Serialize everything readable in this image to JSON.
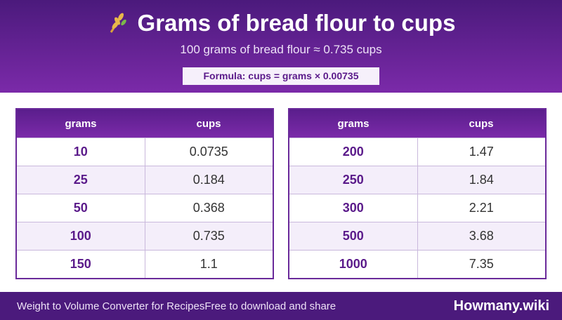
{
  "header": {
    "title": "Grams of bread flour to cups",
    "subtitle": "100 grams of bread flour ≈ 0.735 cups",
    "formula": "Formula: cups = grams × 0.00735"
  },
  "tables": [
    {
      "columns": [
        "grams",
        "cups"
      ],
      "rows": [
        [
          "10",
          "0.0735"
        ],
        [
          "25",
          "0.184"
        ],
        [
          "50",
          "0.368"
        ],
        [
          "100",
          "0.735"
        ],
        [
          "150",
          "1.1"
        ]
      ]
    },
    {
      "columns": [
        "grams",
        "cups"
      ],
      "rows": [
        [
          "200",
          "1.47"
        ],
        [
          "250",
          "1.84"
        ],
        [
          "300",
          "2.21"
        ],
        [
          "500",
          "3.68"
        ],
        [
          "1000",
          "7.35"
        ]
      ]
    }
  ],
  "footer": {
    "name": "Weight to Volume Converter for Recipes",
    "tagline": "Free to download and share",
    "brand": "Howmany.wiki"
  }
}
